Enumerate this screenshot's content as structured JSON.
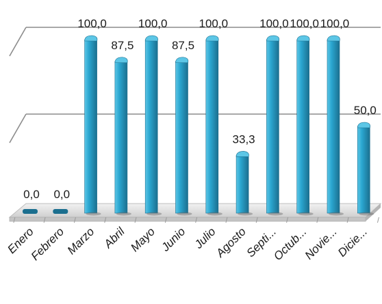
{
  "chart_data": {
    "type": "bar",
    "categories": [
      "Enero",
      "Febrero",
      "Marzo",
      "Abril",
      "Mayo",
      "Junio",
      "Julio",
      "Agosto",
      "Septi...",
      "Octub...",
      "Novie...",
      "Dicie..."
    ],
    "values": [
      0.0,
      0.0,
      100.0,
      87.5,
      100.0,
      87.5,
      100.0,
      33.3,
      100.0,
      100.0,
      100.0,
      50.0
    ],
    "data_labels": [
      "0,0",
      "0,0",
      "100,0",
      "87,5",
      "100,0",
      "87,5",
      "100,0",
      "33,3",
      "100,0",
      "100,0",
      "100,0",
      "50,0"
    ],
    "title": "",
    "xlabel": "",
    "ylabel": "",
    "ylim": [
      0,
      100
    ],
    "gridlines": [
      0,
      50,
      100
    ],
    "grid": true,
    "legend": "none",
    "style": "3d-cylinder",
    "bar_color": "#2aa6d0",
    "bar_dark_color": "#1b6f8f",
    "bar_light_color": "#5cc6e6",
    "grid_color": "#8c8c8c",
    "floor_color": "#d8d8d8"
  }
}
